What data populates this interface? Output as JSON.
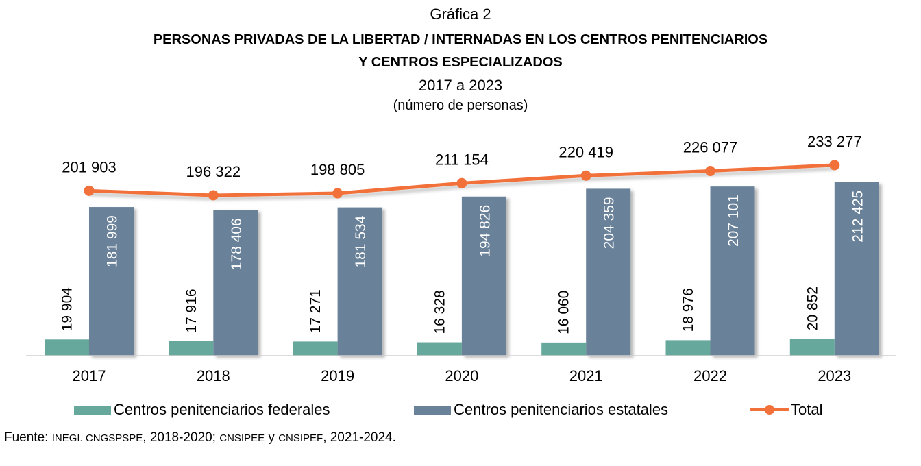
{
  "header": {
    "chart_number": "Gráfica 2",
    "title_line1": "PERSONAS PRIVADAS DE LA LIBERTAD / INTERNADAS EN LOS CENTROS PENITENCIARIOS",
    "title_line2": "Y CENTROS ESPECIALIZADOS",
    "period": "2017 a 2023",
    "unit": "(número de personas)"
  },
  "colors": {
    "federales": "#66a89b",
    "estatales": "#6a8299",
    "total": "#f2713b"
  },
  "legend": {
    "federales": "Centros penitenciarios federales",
    "estatales": "Centros penitenciarios estatales",
    "total": "Total"
  },
  "source": {
    "label": "Fuente:",
    "part1": "INEGI. CNGSPSPE",
    "part2": ", 2018-2020; ",
    "part3": "CNSIPEE",
    "part4": " y ",
    "part5": "CNSIPEF",
    "part6": ", 2021-2024."
  },
  "chart_data": {
    "type": "bar",
    "title": "PERSONAS PRIVADAS DE LA LIBERTAD / INTERNADAS EN LOS CENTROS PENITENCIARIOS Y CENTROS ESPECIALIZADOS",
    "subtitle": "2017 a 2023 (número de personas)",
    "xlabel": "",
    "ylabel": "",
    "categories": [
      "2017",
      "2018",
      "2019",
      "2020",
      "2021",
      "2022",
      "2023"
    ],
    "series": [
      {
        "name": "Centros penitenciarios federales",
        "type": "bar",
        "values": [
          19904,
          17916,
          17271,
          16328,
          16060,
          18976,
          20852
        ],
        "labels": [
          "19 904",
          "17 916",
          "17 271",
          "16 328",
          "16 060",
          "18 976",
          "20 852"
        ]
      },
      {
        "name": "Centros penitenciarios estatales",
        "type": "bar",
        "values": [
          181999,
          178406,
          181534,
          194826,
          204359,
          207101,
          212425
        ],
        "labels": [
          "181 999",
          "178 406",
          "181 534",
          "194 826",
          "204 359",
          "207 101",
          "212 425"
        ]
      },
      {
        "name": "Total",
        "type": "line",
        "values": [
          201903,
          196322,
          198805,
          211154,
          220419,
          226077,
          233277
        ],
        "labels": [
          "201 903",
          "196 322",
          "198 805",
          "211 154",
          "220 419",
          "226 077",
          "233 277"
        ]
      }
    ],
    "ylim": [
      0,
      280000
    ],
    "grid": false,
    "y_axis_visible": false,
    "legend_position": "bottom"
  }
}
